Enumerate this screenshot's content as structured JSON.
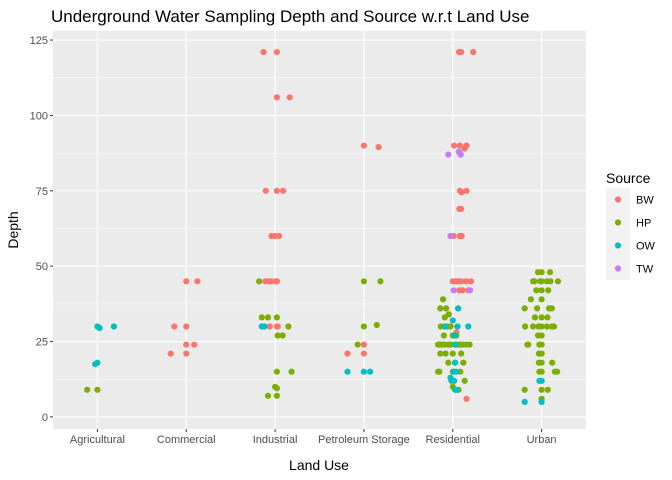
{
  "chart_data": {
    "type": "scatter",
    "title": "Underground Water Sampling Depth and Source w.r.t Land Use",
    "xlabel": "Land Use",
    "ylabel": "Depth",
    "categories": [
      "Agricultural",
      "Commercial",
      "Industrial",
      "Petroleum Storage",
      "Residential",
      "Urban"
    ],
    "ylim": [
      0,
      128
    ],
    "yticks": [
      "0",
      "25",
      "50",
      "75",
      "100",
      "125"
    ],
    "grid": true,
    "legend": {
      "title": "Source",
      "position": "right"
    },
    "colors": {
      "BW": "#f8766d",
      "HP": "#7cae00",
      "OW": "#00bfc4",
      "TW": "#c77cff"
    },
    "series": [
      {
        "name": "BW",
        "points": [
          [
            "Commercial",
            30,
            -0.27
          ],
          [
            "Commercial",
            21,
            -0.35
          ],
          [
            "Commercial",
            45,
            0.0
          ],
          [
            "Commercial",
            45,
            0.25
          ],
          [
            "Commercial",
            30,
            0.0
          ],
          [
            "Commercial",
            24,
            0.0
          ],
          [
            "Commercial",
            21,
            0.0
          ],
          [
            "Commercial",
            24,
            0.18
          ],
          [
            "Industrial",
            121,
            -0.26
          ],
          [
            "Industrial",
            121,
            0.04
          ],
          [
            "Industrial",
            106,
            0.04
          ],
          [
            "Industrial",
            106,
            0.33
          ],
          [
            "Industrial",
            75,
            -0.21
          ],
          [
            "Industrial",
            75,
            0.04
          ],
          [
            "Industrial",
            75,
            0.18
          ],
          [
            "Industrial",
            60,
            -0.08
          ],
          [
            "Industrial",
            60,
            0.0
          ],
          [
            "Industrial",
            60,
            0.09
          ],
          [
            "Industrial",
            45,
            -0.22
          ],
          [
            "Industrial",
            45,
            -0.14
          ],
          [
            "Industrial",
            45,
            -0.12
          ],
          [
            "Industrial",
            45,
            -0.08
          ],
          [
            "Industrial",
            45,
            0.02
          ],
          [
            "Industrial",
            45,
            0.04
          ],
          [
            "Industrial",
            30,
            -0.12
          ],
          [
            "Industrial",
            30,
            0.04
          ],
          [
            "Industrial",
            30,
            0.06
          ],
          [
            "Petroleum Storage",
            90,
            0.0
          ],
          [
            "Petroleum Storage",
            89.5,
            0.33
          ],
          [
            "Petroleum Storage",
            21,
            -0.37
          ],
          [
            "Petroleum Storage",
            24,
            0.0
          ],
          [
            "Petroleum Storage",
            21,
            0.0
          ],
          [
            "Residential",
            121,
            0.14
          ],
          [
            "Residential",
            121,
            0.19
          ],
          [
            "Residential",
            121,
            0.46
          ],
          [
            "Residential",
            90,
            0.03
          ],
          [
            "Residential",
            90,
            0.16
          ],
          [
            "Residential",
            89,
            0.27
          ],
          [
            "Residential",
            90,
            0.31
          ],
          [
            "Residential",
            75,
            0.16
          ],
          [
            "Residential",
            74.5,
            0.2
          ],
          [
            "Residential",
            75,
            0.31
          ],
          [
            "Residential",
            69,
            0.15
          ],
          [
            "Residential",
            69,
            0.19
          ],
          [
            "Residential",
            60,
            0.02
          ],
          [
            "Residential",
            60,
            0.16
          ],
          [
            "Residential",
            60,
            0.2
          ],
          [
            "Residential",
            45,
            0.0
          ],
          [
            "Residential",
            45,
            0.05
          ],
          [
            "Residential",
            45,
            0.1
          ],
          [
            "Residential",
            45,
            0.15
          ],
          [
            "Residential",
            45,
            0.19
          ],
          [
            "Residential",
            45,
            0.3
          ],
          [
            "Residential",
            45,
            0.41
          ],
          [
            "Residential",
            42,
            0.15
          ],
          [
            "Residential",
            42,
            0.22
          ],
          [
            "Residential",
            42,
            0.35
          ],
          [
            "Residential",
            30,
            0.1
          ],
          [
            "Residential",
            28,
            0.08
          ],
          [
            "Residential",
            6,
            0.31
          ]
        ]
      },
      {
        "name": "HP",
        "points": [
          [
            "Agricultural",
            9,
            -0.23
          ],
          [
            "Agricultural",
            9,
            0.0
          ],
          [
            "Industrial",
            45,
            -0.36
          ],
          [
            "Industrial",
            33,
            -0.3
          ],
          [
            "Industrial",
            33,
            -0.16
          ],
          [
            "Industrial",
            33,
            0.04
          ],
          [
            "Industrial",
            30,
            0.3
          ],
          [
            "Industrial",
            27,
            0.06
          ],
          [
            "Industrial",
            27,
            0.17
          ],
          [
            "Industrial",
            15,
            0.04
          ],
          [
            "Industrial",
            15,
            0.37
          ],
          [
            "Industrial",
            10,
            0.0
          ],
          [
            "Industrial",
            9.5,
            0.04
          ],
          [
            "Industrial",
            7,
            -0.16
          ],
          [
            "Industrial",
            7,
            0.04
          ],
          [
            "Petroleum Storage",
            45,
            0.0
          ],
          [
            "Petroleum Storage",
            45,
            0.37
          ],
          [
            "Petroleum Storage",
            30,
            0.0
          ],
          [
            "Petroleum Storage",
            30.5,
            0.29
          ],
          [
            "Petroleum Storage",
            24,
            -0.14
          ],
          [
            "Residential",
            36,
            -0.28
          ],
          [
            "Residential",
            39,
            -0.22
          ],
          [
            "Residential",
            36,
            -0.15
          ],
          [
            "Residential",
            34,
            -0.09
          ],
          [
            "Residential",
            33,
            -0.18
          ],
          [
            "Residential",
            30,
            -0.27
          ],
          [
            "Residential",
            30,
            -0.12
          ],
          [
            "Residential",
            30,
            -0.05
          ],
          [
            "Residential",
            27,
            -0.2
          ],
          [
            "Residential",
            27,
            0.0
          ],
          [
            "Residential",
            27,
            0.08
          ],
          [
            "Residential",
            24,
            -0.33
          ],
          [
            "Residential",
            24,
            -0.3
          ],
          [
            "Residential",
            24,
            -0.26
          ],
          [
            "Residential",
            24,
            -0.22
          ],
          [
            "Residential",
            24,
            -0.18
          ],
          [
            "Residential",
            24,
            -0.1
          ],
          [
            "Residential",
            24,
            -0.04
          ],
          [
            "Residential",
            24,
            0.06
          ],
          [
            "Residential",
            24,
            0.12
          ],
          [
            "Residential",
            24,
            0.17
          ],
          [
            "Residential",
            24,
            0.22
          ],
          [
            "Residential",
            24,
            0.3
          ],
          [
            "Residential",
            24,
            0.38
          ],
          [
            "Residential",
            21,
            -0.28
          ],
          [
            "Residential",
            21,
            -0.16
          ],
          [
            "Residential",
            21,
            0.0
          ],
          [
            "Residential",
            21,
            0.19
          ],
          [
            "Residential",
            18,
            -0.1
          ],
          [
            "Residential",
            18,
            0.05
          ],
          [
            "Residential",
            18,
            0.24
          ],
          [
            "Residential",
            15,
            -0.33
          ],
          [
            "Residential",
            15,
            -0.3
          ],
          [
            "Residential",
            15,
            0.0
          ],
          [
            "Residential",
            15,
            0.17
          ],
          [
            "Residential",
            12,
            0.03
          ],
          [
            "Residential",
            12,
            0.27
          ],
          [
            "Residential",
            10,
            0.0
          ],
          [
            "Residential",
            9,
            0.13
          ],
          [
            "Urban",
            48,
            -0.08
          ],
          [
            "Urban",
            48,
            0.0
          ],
          [
            "Urban",
            48,
            0.19
          ],
          [
            "Urban",
            45,
            -0.19
          ],
          [
            "Urban",
            45,
            -0.16
          ],
          [
            "Urban",
            45,
            -0.03
          ],
          [
            "Urban",
            45,
            0.0
          ],
          [
            "Urban",
            45,
            0.12
          ],
          [
            "Urban",
            45,
            0.2
          ],
          [
            "Urban",
            45,
            0.37
          ],
          [
            "Urban",
            42,
            -0.12
          ],
          [
            "Urban",
            42,
            0.0
          ],
          [
            "Urban",
            42,
            0.15
          ],
          [
            "Urban",
            39,
            -0.24
          ],
          [
            "Urban",
            39,
            0.0
          ],
          [
            "Urban",
            36,
            -0.38
          ],
          [
            "Urban",
            36,
            -0.1
          ],
          [
            "Urban",
            36,
            0.17
          ],
          [
            "Urban",
            36,
            0.23
          ],
          [
            "Urban",
            33,
            -0.15
          ],
          [
            "Urban",
            33,
            0.0
          ],
          [
            "Urban",
            33,
            0.13
          ],
          [
            "Urban",
            30,
            -0.37
          ],
          [
            "Urban",
            30,
            -0.19
          ],
          [
            "Urban",
            30,
            -0.07
          ],
          [
            "Urban",
            30,
            0.0
          ],
          [
            "Urban",
            30,
            0.12
          ],
          [
            "Urban",
            30,
            0.23
          ],
          [
            "Urban",
            30,
            0.28
          ],
          [
            "Urban",
            27,
            -0.08
          ],
          [
            "Urban",
            27,
            0.0
          ],
          [
            "Urban",
            24,
            -0.32
          ],
          [
            "Urban",
            24,
            -0.3
          ],
          [
            "Urban",
            24,
            -0.05
          ],
          [
            "Urban",
            24,
            0.0
          ],
          [
            "Urban",
            21,
            -0.06
          ],
          [
            "Urban",
            21,
            0.0
          ],
          [
            "Urban",
            18,
            -0.06
          ],
          [
            "Urban",
            18,
            0.0
          ],
          [
            "Urban",
            18,
            0.24
          ],
          [
            "Urban",
            15,
            -0.05
          ],
          [
            "Urban",
            15,
            0.0
          ],
          [
            "Urban",
            15,
            0.3
          ],
          [
            "Urban",
            15,
            0.35
          ],
          [
            "Urban",
            12,
            0.0
          ],
          [
            "Urban",
            9,
            -0.38
          ],
          [
            "Urban",
            9,
            0.0
          ],
          [
            "Urban",
            9,
            0.14
          ],
          [
            "Urban",
            6,
            0.0
          ]
        ]
      },
      {
        "name": "OW",
        "points": [
          [
            "Agricultural",
            30,
            0.0
          ],
          [
            "Agricultural",
            29.5,
            0.05
          ],
          [
            "Agricultural",
            30,
            0.37
          ],
          [
            "Agricultural",
            18,
            0.0
          ],
          [
            "Agricultural",
            17.5,
            -0.05
          ],
          [
            "Industrial",
            30,
            -0.3
          ],
          [
            "Industrial",
            30,
            -0.24
          ],
          [
            "Petroleum Storage",
            15,
            -0.37
          ],
          [
            "Petroleum Storage",
            15,
            0.0
          ],
          [
            "Petroleum Storage",
            15,
            0.14
          ],
          [
            "Residential",
            30,
            -0.18
          ],
          [
            "Residential",
            30,
            0.11
          ],
          [
            "Residential",
            36,
            0.12
          ],
          [
            "Residential",
            32,
            0.0
          ],
          [
            "Residential",
            30,
            0.35
          ],
          [
            "Residential",
            27,
            0.05
          ],
          [
            "Residential",
            24,
            0.06
          ],
          [
            "Residential",
            18,
            0.05
          ],
          [
            "Residential",
            15,
            0.02
          ],
          [
            "Residential",
            15,
            0.08
          ],
          [
            "Residential",
            13,
            -0.05
          ],
          [
            "Residential",
            12,
            -0.03
          ],
          [
            "Residential",
            12,
            0.03
          ],
          [
            "Residential",
            9,
            0.05
          ],
          [
            "Residential",
            9,
            0.08
          ],
          [
            "Urban",
            12,
            -0.05
          ],
          [
            "Urban",
            12,
            0.0
          ],
          [
            "Urban",
            5,
            -0.38
          ],
          [
            "Urban",
            5,
            0.0
          ]
        ]
      },
      {
        "name": "TW",
        "points": [
          [
            "Residential",
            87,
            -0.1
          ],
          [
            "Residential",
            88,
            0.14
          ],
          [
            "Residential",
            87.5,
            0.16
          ],
          [
            "Residential",
            87,
            0.18
          ],
          [
            "Residential",
            60,
            -0.05
          ],
          [
            "Residential",
            42,
            0.02
          ],
          [
            "Residential",
            42,
            0.39
          ]
        ]
      }
    ]
  }
}
